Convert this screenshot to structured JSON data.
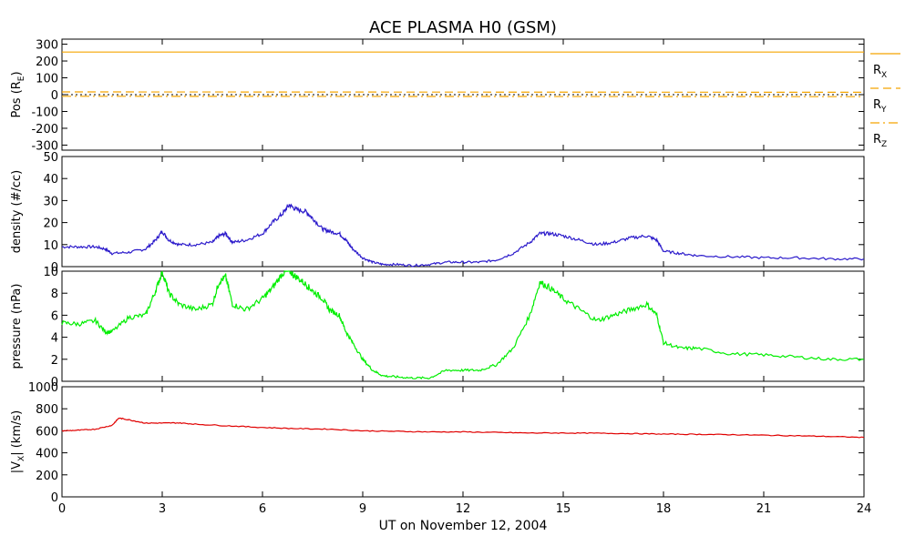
{
  "title": "ACE PLASMA H0 (GSM)",
  "xlabel": "UT on November 12, 2004",
  "x_ticks": [
    "0",
    "3",
    "6",
    "9",
    "12",
    "15",
    "18",
    "21",
    "24"
  ],
  "chart_data": [
    {
      "type": "line",
      "panel": "position",
      "ylabel": "Pos (R",
      "ylabel_sub": "E",
      "ylabel_end": ")",
      "xlim": [
        0,
        24
      ],
      "ylim": [
        -330,
        330
      ],
      "y_ticks": [
        300,
        200,
        100,
        0,
        -100,
        -200,
        -300
      ],
      "zero_line": true,
      "series": [
        {
          "name": "R",
          "name_sub": "X",
          "color": "#f5a500",
          "style": "solid",
          "x": [
            0,
            24
          ],
          "values": [
            253,
            253
          ]
        },
        {
          "name": "R",
          "name_sub": "Y",
          "color": "#f5a500",
          "style": "dashed",
          "x": [
            0,
            24
          ],
          "values": [
            16,
            14
          ]
        },
        {
          "name": "R",
          "name_sub": "Z",
          "color": "#f5a500",
          "style": "dashdot",
          "x": [
            0,
            24
          ],
          "values": [
            -10,
            -12
          ]
        }
      ]
    },
    {
      "type": "line",
      "panel": "density",
      "ylabel": "density (#/cc)",
      "xlim": [
        0,
        24
      ],
      "ylim": [
        0,
        50
      ],
      "y_ticks": [
        50,
        40,
        30,
        20,
        10,
        0
      ],
      "series": [
        {
          "name": "",
          "color": "#2b1acb",
          "x": [
            0,
            0.5,
            1.0,
            1.3,
            1.5,
            2.0,
            2.5,
            2.8,
            3.0,
            3.2,
            3.5,
            4.0,
            4.5,
            4.7,
            4.9,
            5.1,
            5.5,
            6.0,
            6.3,
            6.6,
            6.8,
            7.0,
            7.3,
            7.5,
            7.8,
            8.0,
            8.3,
            8.5,
            8.7,
            9.0,
            9.3,
            9.6,
            10.0,
            10.5,
            11.0,
            11.5,
            12.0,
            12.5,
            13.0,
            13.5,
            14.0,
            14.3,
            14.6,
            15.0,
            15.5,
            16.0,
            16.5,
            17.0,
            17.5,
            17.8,
            18.0,
            18.5,
            19.0,
            20.0,
            21.0,
            22.0,
            23.0,
            24.0
          ],
          "values": [
            9,
            9,
            9,
            8,
            6,
            6.5,
            8,
            12,
            16,
            12,
            10,
            10,
            11,
            14,
            15,
            11,
            12,
            15,
            20,
            24,
            28,
            26,
            25,
            22,
            17,
            16,
            15,
            12,
            8,
            4,
            2,
            1,
            1,
            0.5,
            1,
            2,
            2,
            2,
            3,
            6,
            11,
            15,
            15,
            14,
            12,
            10,
            11,
            13,
            14,
            12,
            7,
            6,
            5,
            4.5,
            4,
            4,
            3.5,
            3.5
          ]
        }
      ]
    },
    {
      "type": "line",
      "panel": "pressure",
      "ylabel": "pressure (nPa)",
      "xlim": [
        0,
        24
      ],
      "ylim": [
        0,
        10
      ],
      "y_ticks": [
        10,
        8,
        6,
        4,
        2,
        0
      ],
      "series": [
        {
          "name": "",
          "color": "#00ee00",
          "x": [
            0,
            0.5,
            1.0,
            1.3,
            1.5,
            2.0,
            2.5,
            2.8,
            3.0,
            3.2,
            3.5,
            4.0,
            4.5,
            4.7,
            4.9,
            5.1,
            5.5,
            6.0,
            6.3,
            6.6,
            6.8,
            7.0,
            7.3,
            7.5,
            7.8,
            8.0,
            8.3,
            8.5,
            8.7,
            9.0,
            9.3,
            9.6,
            10.0,
            10.5,
            11.0,
            11.5,
            12.0,
            12.5,
            13.0,
            13.5,
            14.0,
            14.3,
            14.6,
            15.0,
            15.5,
            16.0,
            16.5,
            17.0,
            17.5,
            17.8,
            18.0,
            18.5,
            19.0,
            20.0,
            21.0,
            22.0,
            23.0,
            24.0
          ],
          "values": [
            5.3,
            5.2,
            5.5,
            4.5,
            4.5,
            5.8,
            6.0,
            8.2,
            10,
            8.0,
            7.0,
            6.5,
            7.0,
            9.0,
            9.5,
            7.0,
            6.5,
            7.5,
            8.5,
            9.8,
            10,
            9.5,
            8.8,
            8.2,
            7.5,
            6.5,
            6.0,
            4.5,
            3.5,
            2.0,
            1.0,
            0.5,
            0.4,
            0.3,
            0.3,
            1.0,
            1.0,
            1.0,
            1.5,
            3.0,
            6.0,
            9.0,
            8.5,
            7.5,
            6.5,
            5.5,
            6.0,
            6.5,
            7.0,
            6.0,
            3.5,
            3.0,
            3.0,
            2.5,
            2.4,
            2.2,
            2.0,
            2.0
          ]
        }
      ]
    },
    {
      "type": "line",
      "panel": "velocity",
      "ylabel": "|V",
      "ylabel_sub": "X",
      "ylabel_end": "| (km/s)",
      "xlim": [
        0,
        24
      ],
      "ylim": [
        0,
        1000
      ],
      "y_ticks": [
        1000,
        800,
        600,
        400,
        200,
        0
      ],
      "series": [
        {
          "name": "",
          "color": "#e00000",
          "x": [
            0,
            0.5,
            1.0,
            1.5,
            1.7,
            2.0,
            2.5,
            3.0,
            3.5,
            4.0,
            5.0,
            6.0,
            7.0,
            8.0,
            9.0,
            10.0,
            11.0,
            12.0,
            13.0,
            14.0,
            15.0,
            16.0,
            17.0,
            18.0,
            19.0,
            20.0,
            21.0,
            22.0,
            23.0,
            24.0
          ],
          "values": [
            600,
            605,
            615,
            650,
            715,
            700,
            670,
            670,
            672,
            660,
            645,
            630,
            620,
            615,
            600,
            595,
            590,
            590,
            585,
            580,
            580,
            578,
            575,
            570,
            568,
            565,
            560,
            555,
            548,
            540
          ]
        }
      ]
    }
  ]
}
